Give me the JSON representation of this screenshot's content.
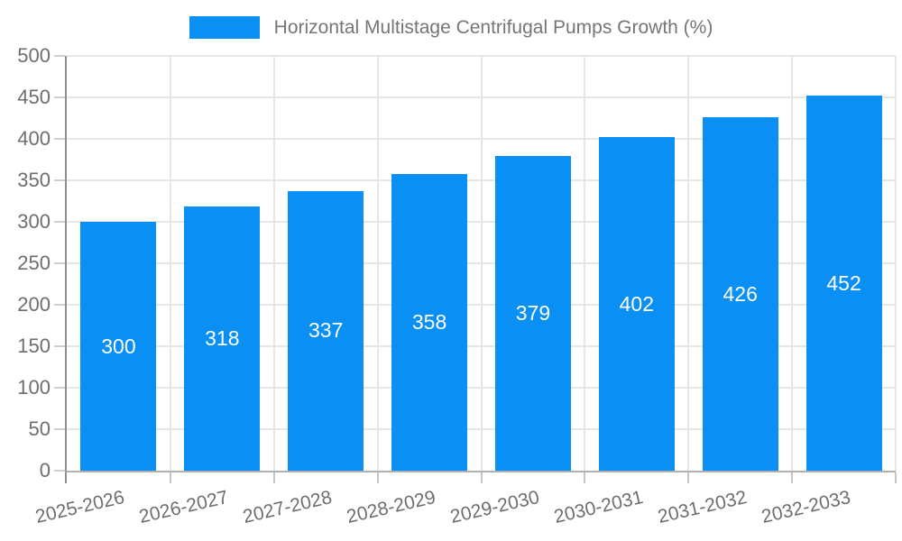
{
  "chart_data": {
    "type": "bar",
    "title": "Horizontal Multistage Centrifugal Pumps Growth (%)",
    "legend": [
      "Horizontal Multistage Centrifugal Pumps Growth (%)"
    ],
    "legend_position": "top-center",
    "categories": [
      "2025-2026",
      "2026-2027",
      "2027-2028",
      "2028-2029",
      "2029-2030",
      "2030-2031",
      "2031-2032",
      "2032-2033"
    ],
    "values": [
      300,
      318,
      337,
      358,
      379,
      402,
      426,
      452
    ],
    "bar_value_labels_shown": true,
    "xlabel": "",
    "ylabel": "",
    "ylim": [
      0,
      500
    ],
    "ytick_step": 50,
    "yticks": [
      0,
      50,
      100,
      150,
      200,
      250,
      300,
      350,
      400,
      450,
      500
    ],
    "grid": true,
    "colors": {
      "bar": "#0a8ff5",
      "grid": "#e6e6e6",
      "y_axis": "#8f8f8f",
      "x_axis": "#b0b0b0",
      "tick_mark": "#cfcfcf",
      "tick_text": "#6e6e6e",
      "legend_text": "#757575",
      "bar_label_text": "#ffffff",
      "background": "#ffffff"
    }
  }
}
